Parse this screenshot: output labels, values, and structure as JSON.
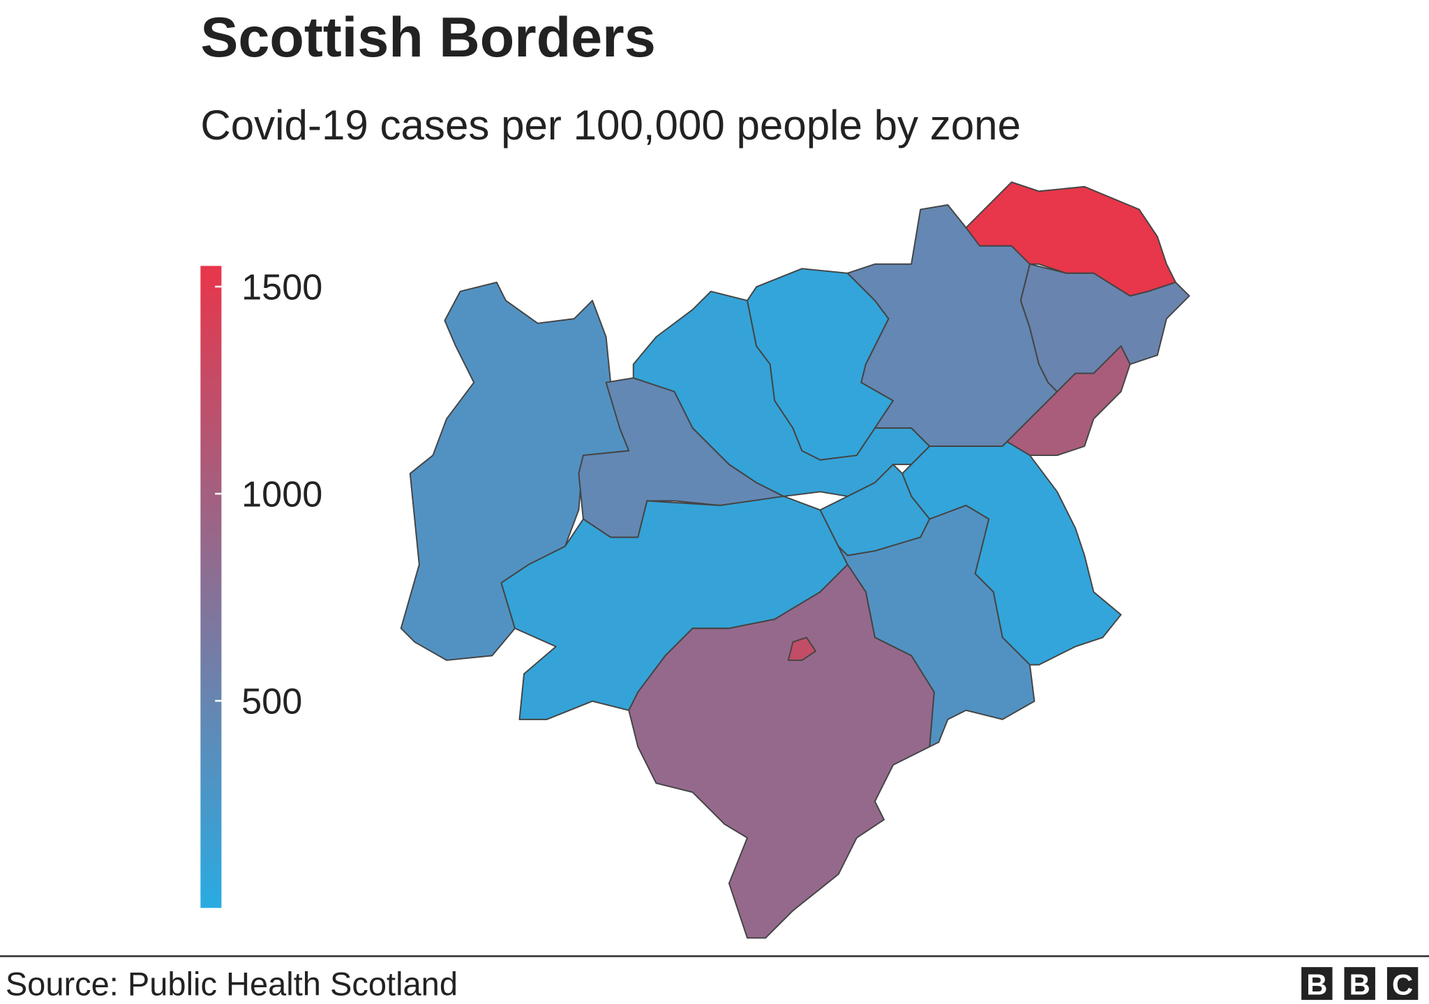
{
  "chart_data": {
    "type": "choropleth",
    "title": "Scottish Borders",
    "subtitle": "Covid-19 cases per 100,000 people by zone",
    "colorbar": {
      "lim": [
        0,
        1550
      ],
      "ticks": [
        500,
        1000,
        1500
      ],
      "colors": [
        "#29abe2",
        "#e8364a"
      ]
    },
    "zones": [
      330,
      470,
      100,
      100,
      80,
      480,
      1550,
      520,
      1050,
      80,
      110,
      330,
      880,
      1250
    ],
    "source": "Source: Public Health Scotland",
    "logo": [
      "B",
      "B",
      "C"
    ]
  }
}
